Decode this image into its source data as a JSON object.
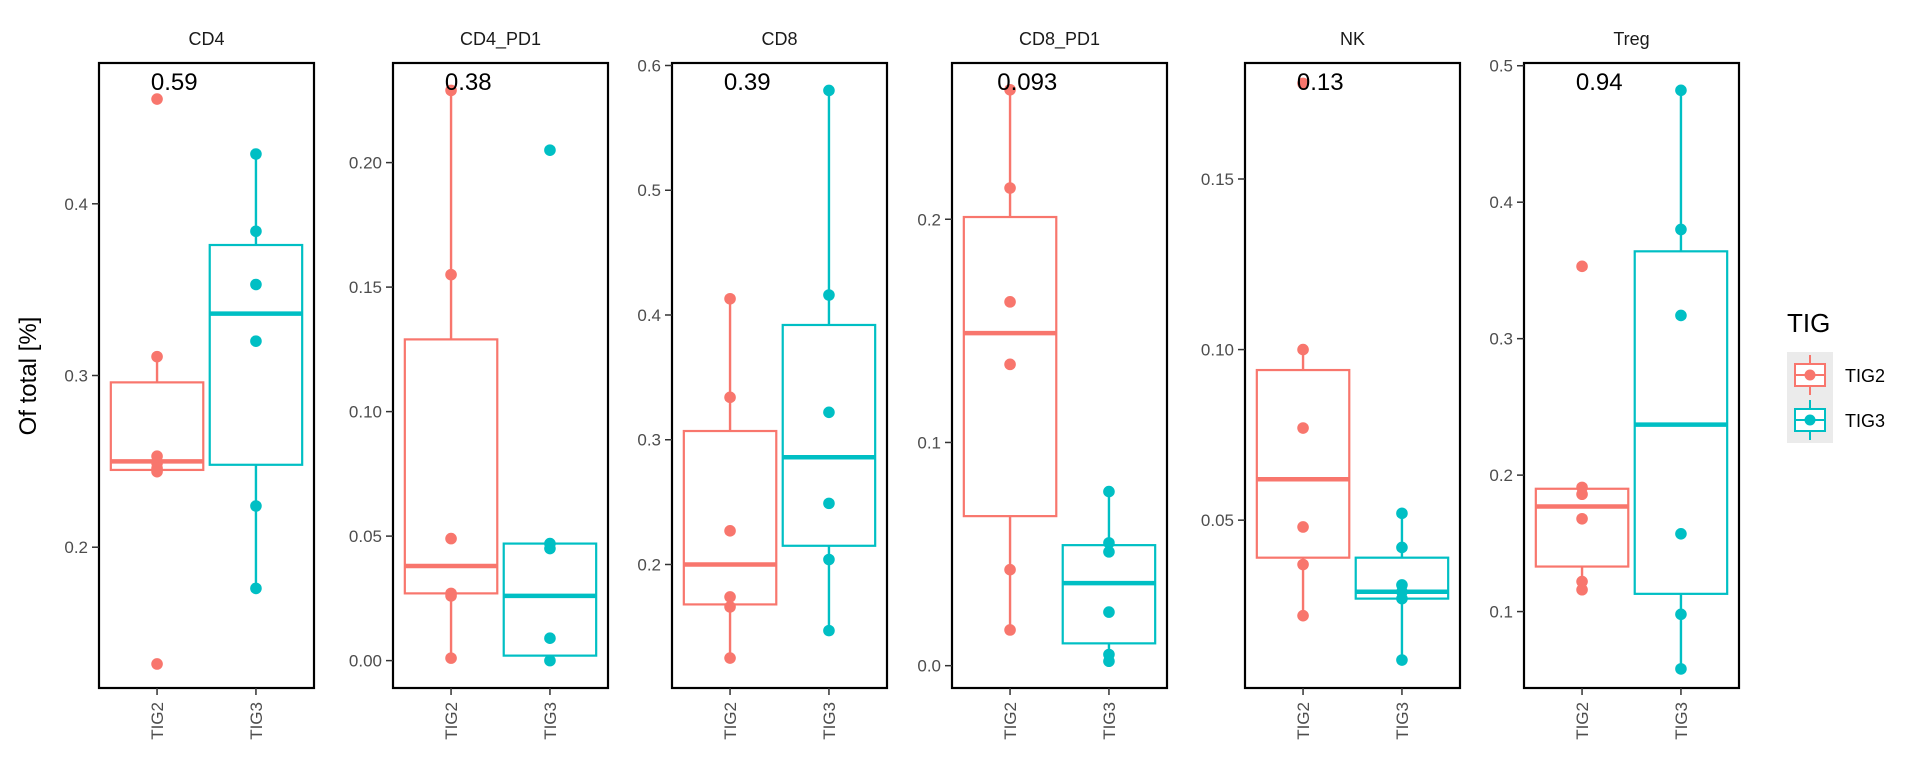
{
  "chart_data": {
    "type": "box",
    "ylabel": "Of total [%]",
    "categories": [
      "TIG2",
      "TIG3"
    ],
    "colors": {
      "TIG2": "#F8766D",
      "TIG3": "#00BFC4"
    },
    "legend": {
      "title": "TIG",
      "position": "right",
      "entries": [
        {
          "label": "TIG2",
          "color": "#F8766D"
        },
        {
          "label": "TIG3",
          "color": "#00BFC4"
        }
      ]
    },
    "facets": [
      {
        "title": "CD4",
        "pvalue": "0.59",
        "ylim": [
          0.118,
          0.482
        ],
        "yticks": [
          {
            "v": 0.2,
            "label": "0.2"
          },
          {
            "v": 0.3,
            "label": "0.3"
          },
          {
            "v": 0.4,
            "label": "0.4"
          }
        ],
        "groups": [
          {
            "name": "TIG2",
            "stats": {
              "lower": 0.245,
              "q1": 0.245,
              "median": 0.25,
              "q3": 0.296,
              "upper": 0.311
            },
            "points": [
              0.461,
              0.311,
              0.253,
              0.249,
              0.246,
              0.244,
              0.132
            ]
          },
          {
            "name": "TIG3",
            "stats": {
              "lower": 0.176,
              "q1": 0.248,
              "median": 0.336,
              "q3": 0.376,
              "upper": 0.429
            },
            "points": [
              0.429,
              0.384,
              0.353,
              0.32,
              0.224,
              0.176
            ]
          }
        ]
      },
      {
        "title": "CD4_PD1",
        "pvalue": "0.38",
        "ylim": [
          -0.011,
          0.24
        ],
        "yticks": [
          {
            "v": 0.0,
            "label": "0.00"
          },
          {
            "v": 0.05,
            "label": "0.05"
          },
          {
            "v": 0.1,
            "label": "0.10"
          },
          {
            "v": 0.15,
            "label": "0.15"
          },
          {
            "v": 0.2,
            "label": "0.20"
          }
        ],
        "groups": [
          {
            "name": "TIG2",
            "stats": {
              "lower": 0.001,
              "q1": 0.027,
              "median": 0.038,
              "q3": 0.129,
              "upper": 0.229
            },
            "points": [
              0.229,
              0.155,
              0.049,
              0.027,
              0.026,
              0.001
            ]
          },
          {
            "name": "TIG3",
            "stats": {
              "lower": 0.0,
              "q1": 0.002,
              "median": 0.026,
              "q3": 0.047,
              "upper": 0.047
            },
            "points": [
              0.205,
              0.047,
              0.045,
              0.009,
              0.0
            ]
          }
        ]
      },
      {
        "title": "CD8",
        "pvalue": "0.39",
        "ylim": [
          0.101,
          0.602
        ],
        "yticks": [
          {
            "v": 0.2,
            "label": "0.2"
          },
          {
            "v": 0.3,
            "label": "0.3"
          },
          {
            "v": 0.4,
            "label": "0.4"
          },
          {
            "v": 0.5,
            "label": "0.5"
          },
          {
            "v": 0.6,
            "label": "0.6"
          }
        ],
        "groups": [
          {
            "name": "TIG2",
            "stats": {
              "lower": 0.125,
              "q1": 0.168,
              "median": 0.2,
              "q3": 0.307,
              "upper": 0.413
            },
            "points": [
              0.413,
              0.334,
              0.227,
              0.174,
              0.166,
              0.125
            ]
          },
          {
            "name": "TIG3",
            "stats": {
              "lower": 0.147,
              "q1": 0.215,
              "median": 0.286,
              "q3": 0.392,
              "upper": 0.58
            },
            "points": [
              0.58,
              0.416,
              0.322,
              0.249,
              0.204,
              0.147
            ]
          }
        ]
      },
      {
        "title": "CD8_PD1",
        "pvalue": "0.093",
        "ylim": [
          -0.01,
          0.27
        ],
        "yticks": [
          {
            "v": 0.0,
            "label": "0.0"
          },
          {
            "v": 0.1,
            "label": "0.1"
          },
          {
            "v": 0.2,
            "label": "0.2"
          }
        ],
        "groups": [
          {
            "name": "TIG2",
            "stats": {
              "lower": 0.016,
              "q1": 0.067,
              "median": 0.149,
              "q3": 0.201,
              "upper": 0.258
            },
            "points": [
              0.258,
              0.214,
              0.163,
              0.135,
              0.043,
              0.016
            ]
          },
          {
            "name": "TIG3",
            "stats": {
              "lower": 0.002,
              "q1": 0.01,
              "median": 0.037,
              "q3": 0.054,
              "upper": 0.078
            },
            "points": [
              0.078,
              0.055,
              0.051,
              0.024,
              0.005,
              0.002
            ]
          }
        ]
      },
      {
        "title": "NK",
        "pvalue": "0.13",
        "ylim": [
          0.0008,
          0.184
        ],
        "yticks": [
          {
            "v": 0.05,
            "label": "0.05"
          },
          {
            "v": 0.1,
            "label": "0.10"
          },
          {
            "v": 0.15,
            "label": "0.15"
          }
        ],
        "groups": [
          {
            "name": "TIG2",
            "stats": {
              "lower": 0.022,
              "q1": 0.039,
              "median": 0.062,
              "q3": 0.094,
              "upper": 0.1
            },
            "points": [
              0.178,
              0.1,
              0.077,
              0.048,
              0.037,
              0.022
            ]
          },
          {
            "name": "TIG3",
            "stats": {
              "lower": 0.009,
              "q1": 0.027,
              "median": 0.029,
              "q3": 0.039,
              "upper": 0.052
            },
            "points": [
              0.052,
              0.042,
              0.031,
              0.029,
              0.027,
              0.009
            ]
          }
        ]
      },
      {
        "title": "Treg",
        "pvalue": "0.94",
        "ylim": [
          0.044,
          0.502
        ],
        "yticks": [
          {
            "v": 0.1,
            "label": "0.1"
          },
          {
            "v": 0.2,
            "label": "0.2"
          },
          {
            "v": 0.3,
            "label": "0.3"
          },
          {
            "v": 0.4,
            "label": "0.4"
          },
          {
            "v": 0.5,
            "label": "0.5"
          }
        ],
        "groups": [
          {
            "name": "TIG2",
            "stats": {
              "lower": 0.116,
              "q1": 0.133,
              "median": 0.177,
              "q3": 0.19,
              "upper": 0.192
            },
            "points": [
              0.353,
              0.191,
              0.186,
              0.168,
              0.122,
              0.116
            ]
          },
          {
            "name": "TIG3",
            "stats": {
              "lower": 0.058,
              "q1": 0.113,
              "median": 0.237,
              "q3": 0.364,
              "upper": 0.482
            },
            "points": [
              0.482,
              0.38,
              0.317,
              0.157,
              0.098,
              0.058
            ]
          }
        ]
      }
    ]
  }
}
